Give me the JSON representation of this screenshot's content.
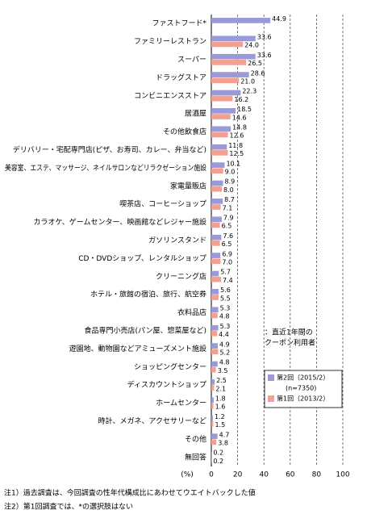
{
  "chart_data": {
    "type": "hbar",
    "categories": [
      "ファストフード*",
      "ファミリーレストラン",
      "スーパー",
      "ドラッグストア",
      "コンビニエンスストア",
      "居酒屋",
      "その他飲食店",
      "デリバリー・宅配専門店(ピザ、お寿司、カレー、弁当など)",
      "美容室、エステ、マッサージ、ネイルサロンなどリラクゼーション施設",
      "家電量販店",
      "喫茶店、コーヒーショップ",
      "カラオケ、ゲームセンター、映画館などレジャー施設",
      "ガソリンスタンド",
      "CD・DVDショップ、レンタルショップ",
      "クリーニング店",
      "ホテル・旅館の宿泊、旅行、航空券",
      "衣料品店",
      "食品専門小売店(パン屋、惣菜屋など)",
      "遊園地、動物園などアミューズメント施設",
      "ショッピングセンター",
      "ディスカウントショップ",
      "ホームセンター",
      "時計、メガネ、アクセサリーなど",
      "その他",
      "無回答"
    ],
    "series": [
      {
        "name": "第2回（2015/2）",
        "color": "#9a9ad8",
        "values": [
          44.9,
          33.6,
          33.6,
          28.6,
          22.3,
          18.5,
          14.8,
          11.8,
          10.1,
          8.9,
          8.7,
          7.9,
          7.6,
          6.9,
          5.7,
          5.6,
          5.3,
          5.3,
          4.9,
          4.8,
          2.5,
          1.8,
          1.2,
          4.7,
          0.2
        ],
        "value_labels": [
          "44.9",
          "33.6",
          "33.6",
          "28.6",
          "22.3",
          "18.5",
          "14.8",
          "11.8",
          "10.1",
          "8.9",
          "8.7",
          "7.9",
          "7.6",
          "6.9",
          "5.7",
          "5.6",
          "5.3",
          "5.3",
          "4.9",
          "4.8",
          "2.5",
          "1.8",
          "1.2",
          "4.7",
          "0.2"
        ]
      },
      {
        "name": "第1回（2013/2）",
        "color": "#f4a090",
        "values": [
          null,
          24.0,
          26.5,
          21.0,
          16.2,
          14.6,
          12.6,
          12.5,
          9.0,
          8.0,
          7.1,
          6.5,
          6.5,
          7.0,
          7.4,
          5.5,
          4.8,
          4.4,
          5.2,
          3.5,
          2.1,
          1.6,
          1.5,
          3.8,
          0.2
        ],
        "value_labels": [
          null,
          "24.0",
          "26.5",
          "21.0",
          "16.2",
          "14.6",
          "12.6",
          "12.5",
          "9.0",
          "8.0",
          "7.1",
          "6.5",
          "6.5",
          "7.0",
          "7.4",
          "5.5",
          "4.8",
          "4.4",
          "5.2",
          "3.5",
          "2.1",
          "1.6",
          "1.5",
          "3.8",
          "0.2"
        ]
      }
    ],
    "xlim": [
      0,
      100
    ],
    "xticks": [
      0,
      20,
      40,
      60,
      80,
      100
    ],
    "x_label": "(%)",
    "grid": true,
    "legend_position": "right",
    "legend_note": "(n=7350)",
    "annotation": [
      "：直近1年間の",
      "クーポン利用者"
    ],
    "notes": [
      "注1）過去調査は、今回調査の性年代構成比にあわせてウエイトバックした値",
      "注2）第1回調査では、*の選択肢はない"
    ]
  }
}
